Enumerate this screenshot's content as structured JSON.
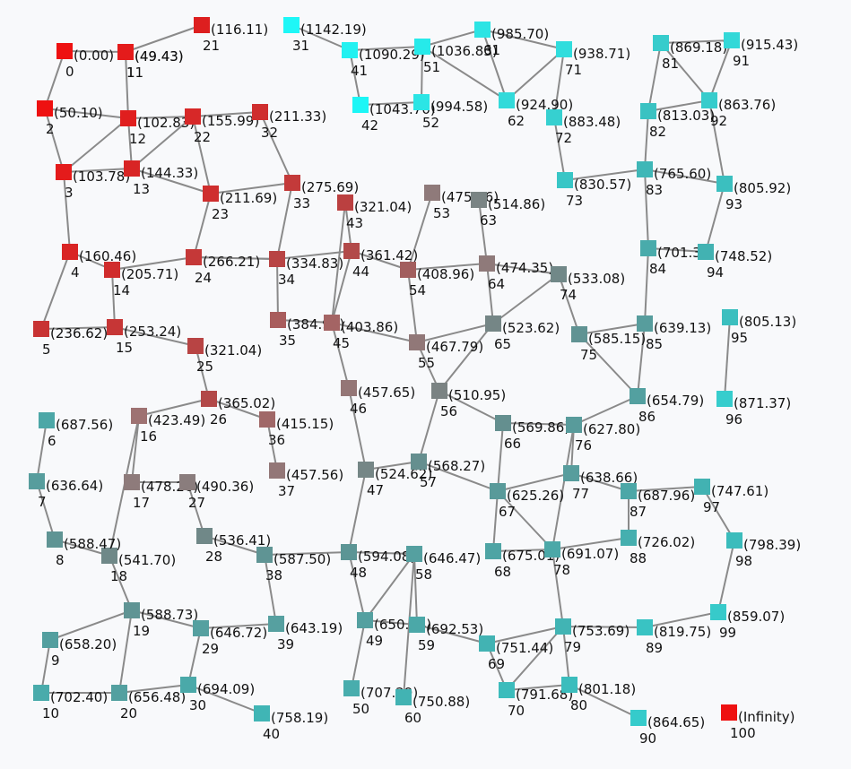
{
  "graph": {
    "nodes": [
      {
        "id": "0",
        "distance": "(0.00)",
        "color": "#ee1111"
      },
      {
        "id": "1",
        "distance": "(49.43)",
        "color": "#e41b1b"
      },
      {
        "id": "2",
        "distance": "(50.10)",
        "color": "#ee1111"
      },
      {
        "id": "3",
        "distance": "(103.78)",
        "color": "#e41b1b"
      },
      {
        "id": "4",
        "distance": "(160.46)",
        "color": "#d92424"
      },
      {
        "id": "5",
        "distance": "(236.62)",
        "color": "#c83333"
      },
      {
        "id": "11",
        "distance": "(49.43)",
        "color": "#e41b1b"
      },
      {
        "id": "12",
        "distance": "(102.83)",
        "color": "#e01e1e"
      },
      {
        "id": "13",
        "distance": "(144.33)",
        "color": "#d82525"
      },
      {
        "id": "14",
        "distance": "(205.71)",
        "color": "#d02c2c"
      },
      {
        "id": "15",
        "distance": "(253.24)",
        "color": "#c63636"
      },
      {
        "id": "16",
        "distance": "(423.49)",
        "color": "#9e7272"
      },
      {
        "id": "17",
        "distance": "(478.26)",
        "color": "#8e7b7b"
      },
      {
        "id": "18",
        "distance": "(541.70)",
        "color": "#6f8888"
      },
      {
        "id": "19",
        "distance": "(588.73)",
        "color": "#5f9494"
      },
      {
        "id": "20",
        "distance": "(656.48)",
        "color": "#53a0a0"
      },
      {
        "id": "21",
        "distance": "(116.11)",
        "color": "#dd1f1f"
      },
      {
        "id": "22",
        "distance": "(155.99)",
        "color": "#d72828"
      },
      {
        "id": "23",
        "distance": "(211.69)",
        "color": "#cf2e2e"
      },
      {
        "id": "24",
        "distance": "(266.21)",
        "color": "#c53838"
      },
      {
        "id": "25",
        "distance": "(321.04)",
        "color": "#b84444"
      },
      {
        "id": "26",
        "distance": "(365.02)",
        "color": "#b24848"
      },
      {
        "id": "27",
        "distance": "(490.36)",
        "color": "#8a7d7d"
      },
      {
        "id": "28",
        "distance": "(536.41)",
        "color": "#708888"
      },
      {
        "id": "29",
        "distance": "(646.72)",
        "color": "#55a0a0"
      },
      {
        "id": "30",
        "distance": "(694.09)",
        "color": "#4aa9a9"
      },
      {
        "id": "31",
        "distance": "(1142.19)",
        "color": "#1ef7f7"
      },
      {
        "id": "32",
        "distance": "(211.33)",
        "color": "#cf2e2e"
      },
      {
        "id": "33",
        "distance": "(275.69)",
        "color": "#c33a3a"
      },
      {
        "id": "34",
        "distance": "(334.83)",
        "color": "#b84444"
      },
      {
        "id": "35",
        "distance": "(384.91)",
        "color": "#a85c5c"
      },
      {
        "id": "36",
        "distance": "(415.15)",
        "color": "#a06868"
      },
      {
        "id": "37",
        "distance": "(457.56)",
        "color": "#937777"
      },
      {
        "id": "38",
        "distance": "(587.50)",
        "color": "#5f9494"
      },
      {
        "id": "39",
        "distance": "(643.19)",
        "color": "#56a0a0"
      },
      {
        "id": "40",
        "distance": "(758.19)",
        "color": "#40b5b5"
      },
      {
        "id": "41",
        "distance": "(1090.29)",
        "color": "#22f1f1"
      },
      {
        "id": "42",
        "distance": "(1043.70)",
        "color": "#1cf6f6"
      },
      {
        "id": "43",
        "distance": "(321.04)",
        "color": "#bb4040"
      },
      {
        "id": "44",
        "distance": "(361.42)",
        "color": "#b24a4a"
      },
      {
        "id": "45",
        "distance": "(403.86)",
        "color": "#a46464"
      },
      {
        "id": "46",
        "distance": "(457.65)",
        "color": "#947676"
      },
      {
        "id": "47",
        "distance": "(524.62)",
        "color": "#758686"
      },
      {
        "id": "48",
        "distance": "(594.08)",
        "color": "#5c9595"
      },
      {
        "id": "49",
        "distance": "(650.64)",
        "color": "#54a0a0"
      },
      {
        "id": "50",
        "distance": "(707.29)",
        "color": "#48adad"
      },
      {
        "id": "51",
        "distance": "(1036.83)",
        "color": "#26eaea"
      },
      {
        "id": "52",
        "distance": "(994.58)",
        "color": "#2be5e5"
      },
      {
        "id": "53",
        "distance": "(475.76)",
        "color": "#8f7a7a"
      },
      {
        "id": "54",
        "distance": "(408.96)",
        "color": "#a25e5e"
      },
      {
        "id": "55",
        "distance": "(467.79)",
        "color": "#917878"
      },
      {
        "id": "56",
        "distance": "(510.95)",
        "color": "#7b8383"
      },
      {
        "id": "57",
        "distance": "(568.27)",
        "color": "#658f8f"
      },
      {
        "id": "58",
        "distance": "(646.47)",
        "color": "#55a0a0"
      },
      {
        "id": "59",
        "distance": "(692.53)",
        "color": "#4ba8a8"
      },
      {
        "id": "60",
        "distance": "(750.88)",
        "color": "#42b3b3"
      },
      {
        "id": "61",
        "distance": "(985.70)",
        "color": "#2ce4e4"
      },
      {
        "id": "62",
        "distance": "(924.90)",
        "color": "#32dada"
      },
      {
        "id": "63",
        "distance": "(514.86)",
        "color": "#7a8484"
      },
      {
        "id": "64",
        "distance": "(474.35)",
        "color": "#8f7a7a"
      },
      {
        "id": "65",
        "distance": "(523.62)",
        "color": "#758686"
      },
      {
        "id": "66",
        "distance": "(569.86)",
        "color": "#648f8f"
      },
      {
        "id": "67",
        "distance": "(625.26)",
        "color": "#599a9a"
      },
      {
        "id": "68",
        "distance": "(675.01)",
        "color": "#4ea4a4"
      },
      {
        "id": "69",
        "distance": "(751.44)",
        "color": "#42b3b3"
      },
      {
        "id": "70",
        "distance": "(791.68)",
        "color": "#3cbcbc"
      },
      {
        "id": "71",
        "distance": "(938.71)",
        "color": "#30dddd"
      },
      {
        "id": "72",
        "distance": "(883.48)",
        "color": "#36d0d0"
      },
      {
        "id": "73",
        "distance": "(830.57)",
        "color": "#38c6c6"
      },
      {
        "id": "74",
        "distance": "(533.08)",
        "color": "#718888"
      },
      {
        "id": "75",
        "distance": "(585.15)",
        "color": "#609393"
      },
      {
        "id": "76",
        "distance": "(627.80)",
        "color": "#589b9b"
      },
      {
        "id": "77",
        "distance": "(638.66)",
        "color": "#579d9d"
      },
      {
        "id": "78",
        "distance": "(691.07)",
        "color": "#4ba8a8"
      },
      {
        "id": "79",
        "distance": "(753.69)",
        "color": "#41b4b4"
      },
      {
        "id": "80",
        "distance": "(801.18)",
        "color": "#3bbdbd"
      },
      {
        "id": "81",
        "distance": "(869.18)",
        "color": "#37cccc"
      },
      {
        "id": "82",
        "distance": "(813.03)",
        "color": "#3ac2c2"
      },
      {
        "id": "83",
        "distance": "(765.60)",
        "color": "#3fb7b7"
      },
      {
        "id": "84",
        "distance": "(701.38)",
        "color": "#49abab"
      },
      {
        "id": "85",
        "distance": "(639.13)",
        "color": "#579d9d"
      },
      {
        "id": "86",
        "distance": "(654.79)",
        "color": "#53a0a0"
      },
      {
        "id": "87",
        "distance": "(687.96)",
        "color": "#4ca7a7"
      },
      {
        "id": "88",
        "distance": "(726.02)",
        "color": "#45afaf"
      },
      {
        "id": "89",
        "distance": "(819.75)",
        "color": "#39c3c3"
      },
      {
        "id": "90",
        "distance": "(864.65)",
        "color": "#35cbcb"
      },
      {
        "id": "91",
        "distance": "(915.43)",
        "color": "#33d8d8"
      },
      {
        "id": "92",
        "distance": "(863.76)",
        "color": "#37cccc"
      },
      {
        "id": "93",
        "distance": "(805.92)",
        "color": "#3bbfbf"
      },
      {
        "id": "94",
        "distance": "(748.52)",
        "color": "#42b2b2"
      },
      {
        "id": "95",
        "distance": "(805.13)",
        "color": "#3bbfbf"
      },
      {
        "id": "96",
        "distance": "(871.37)",
        "color": "#36cdcd"
      },
      {
        "id": "97",
        "distance": "(747.61)",
        "color": "#42b2b2"
      },
      {
        "id": "98",
        "distance": "(798.39)",
        "color": "#3bbcbc"
      },
      {
        "id": "99",
        "distance": "(859.07)",
        "color": "#37caca"
      },
      {
        "id": "6",
        "distance": "(687.56)",
        "color": "#4ca7a7"
      },
      {
        "id": "7",
        "distance": "(636.64)",
        "color": "#579d9d"
      },
      {
        "id": "8",
        "distance": "(588.47)",
        "color": "#5f9494"
      },
      {
        "id": "9",
        "distance": "(658.20)",
        "color": "#539f9f"
      },
      {
        "id": "10",
        "distance": "(702.40)",
        "color": "#49abab"
      },
      {
        "id": "100",
        "distance": "(Infinity)",
        "color": "#ee1111"
      }
    ],
    "edges": [
      [
        "0",
        "1"
      ],
      [
        "0",
        "2"
      ],
      [
        "1",
        "21"
      ],
      [
        "1",
        "12"
      ],
      [
        "2",
        "12"
      ],
      [
        "2",
        "3"
      ],
      [
        "3",
        "12"
      ],
      [
        "3",
        "13"
      ],
      [
        "3",
        "4"
      ],
      [
        "12",
        "13"
      ],
      [
        "12",
        "22"
      ],
      [
        "13",
        "22"
      ],
      [
        "13",
        "23"
      ],
      [
        "22",
        "32"
      ],
      [
        "22",
        "23"
      ],
      [
        "32",
        "33"
      ],
      [
        "23",
        "33"
      ],
      [
        "23",
        "24"
      ],
      [
        "4",
        "14"
      ],
      [
        "4",
        "5"
      ],
      [
        "14",
        "24"
      ],
      [
        "14",
        "15"
      ],
      [
        "5",
        "15"
      ],
      [
        "15",
        "25"
      ],
      [
        "25",
        "26"
      ],
      [
        "26",
        "16"
      ],
      [
        "26",
        "36"
      ],
      [
        "36",
        "37"
      ],
      [
        "33",
        "34"
      ],
      [
        "24",
        "34"
      ],
      [
        "34",
        "44"
      ],
      [
        "34",
        "35"
      ],
      [
        "35",
        "45"
      ],
      [
        "43",
        "44"
      ],
      [
        "44",
        "45"
      ],
      [
        "44",
        "54"
      ],
      [
        "45",
        "46"
      ],
      [
        "45",
        "55"
      ],
      [
        "53",
        "54"
      ],
      [
        "54",
        "55"
      ],
      [
        "54",
        "64"
      ],
      [
        "63",
        "64"
      ],
      [
        "64",
        "65"
      ],
      [
        "64",
        "74"
      ],
      [
        "55",
        "56"
      ],
      [
        "55",
        "65"
      ],
      [
        "65",
        "56"
      ],
      [
        "65",
        "74"
      ],
      [
        "74",
        "75"
      ],
      [
        "75",
        "85"
      ],
      [
        "75",
        "86"
      ],
      [
        "85",
        "86"
      ],
      [
        "85",
        "84"
      ],
      [
        "84",
        "83"
      ],
      [
        "84",
        "94"
      ],
      [
        "83",
        "73"
      ],
      [
        "83",
        "82"
      ],
      [
        "83",
        "93"
      ],
      [
        "82",
        "81"
      ],
      [
        "82",
        "92"
      ],
      [
        "81",
        "91"
      ],
      [
        "81",
        "92"
      ],
      [
        "91",
        "92"
      ],
      [
        "92",
        "93"
      ],
      [
        "93",
        "94"
      ],
      [
        "95",
        "96"
      ],
      [
        "31",
        "41"
      ],
      [
        "41",
        "51"
      ],
      [
        "41",
        "42"
      ],
      [
        "42",
        "52"
      ],
      [
        "51",
        "52"
      ],
      [
        "51",
        "61"
      ],
      [
        "61",
        "71"
      ],
      [
        "51",
        "62"
      ],
      [
        "61",
        "62"
      ],
      [
        "62",
        "71"
      ],
      [
        "71",
        "72"
      ],
      [
        "72",
        "73"
      ],
      [
        "16",
        "17"
      ],
      [
        "16",
        "18"
      ],
      [
        "17",
        "27"
      ],
      [
        "27",
        "28"
      ],
      [
        "28",
        "38"
      ],
      [
        "38",
        "48"
      ],
      [
        "38",
        "39"
      ],
      [
        "39",
        "29"
      ],
      [
        "29",
        "19"
      ],
      [
        "29",
        "30"
      ],
      [
        "30",
        "20"
      ],
      [
        "30",
        "40"
      ],
      [
        "18",
        "8"
      ],
      [
        "18",
        "19"
      ],
      [
        "19",
        "9"
      ],
      [
        "19",
        "20"
      ],
      [
        "9",
        "10"
      ],
      [
        "10",
        "20"
      ],
      [
        "6",
        "7"
      ],
      [
        "7",
        "8"
      ],
      [
        "46",
        "47"
      ],
      [
        "47",
        "48"
      ],
      [
        "47",
        "57"
      ],
      [
        "56",
        "57"
      ],
      [
        "56",
        "66"
      ],
      [
        "57",
        "67"
      ],
      [
        "66",
        "67"
      ],
      [
        "66",
        "76"
      ],
      [
        "76",
        "86"
      ],
      [
        "76",
        "77"
      ],
      [
        "76",
        "78"
      ],
      [
        "67",
        "77"
      ],
      [
        "67",
        "78"
      ],
      [
        "67",
        "68"
      ],
      [
        "68",
        "78"
      ],
      [
        "77",
        "87"
      ],
      [
        "87",
        "97"
      ],
      [
        "87",
        "88"
      ],
      [
        "88",
        "78"
      ],
      [
        "97",
        "98"
      ],
      [
        "98",
        "99"
      ],
      [
        "99",
        "89"
      ],
      [
        "89",
        "79"
      ],
      [
        "78",
        "79"
      ],
      [
        "79",
        "69"
      ],
      [
        "79",
        "70"
      ],
      [
        "79",
        "80"
      ],
      [
        "80",
        "70"
      ],
      [
        "80",
        "90"
      ],
      [
        "69",
        "70"
      ],
      [
        "59",
        "69"
      ],
      [
        "58",
        "59"
      ],
      [
        "48",
        "58"
      ],
      [
        "48",
        "49"
      ],
      [
        "49",
        "58"
      ],
      [
        "49",
        "50"
      ],
      [
        "58",
        "60"
      ],
      [
        "49",
        "59"
      ],
      [
        "24",
        "34"
      ],
      [
        "43",
        "45"
      ]
    ]
  }
}
